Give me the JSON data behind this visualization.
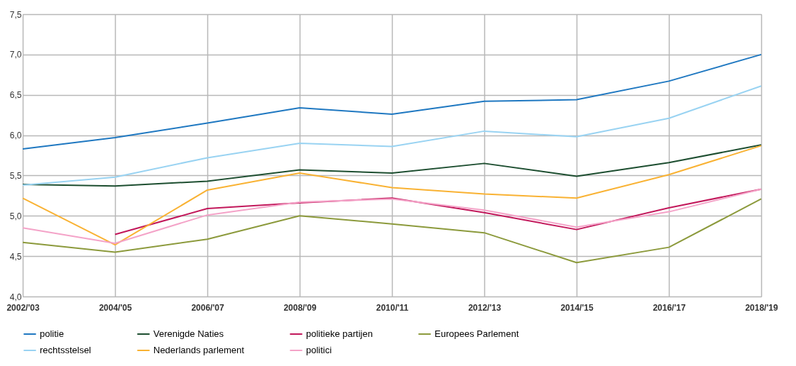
{
  "chart_data": {
    "type": "line",
    "categories": [
      "2002/'03",
      "2004/'05",
      "2006/'07",
      "2008/'09",
      "2010/'11",
      "2012/'13",
      "2014/'15",
      "2016/'17",
      "2018/'19"
    ],
    "series": [
      {
        "name": "politie",
        "color": "#1f78c1",
        "values": [
          5.83,
          5.97,
          6.15,
          6.34,
          6.26,
          6.42,
          6.44,
          6.67,
          7.0
        ]
      },
      {
        "name": "Verenigde Naties",
        "color": "#1d4e30",
        "values": [
          5.39,
          5.37,
          5.43,
          5.57,
          5.53,
          5.65,
          5.49,
          5.66,
          5.88
        ]
      },
      {
        "name": "politieke partijen",
        "color": "#c2185b",
        "values": [
          null,
          4.77,
          5.09,
          5.16,
          5.22,
          5.04,
          4.83,
          5.1,
          5.33
        ]
      },
      {
        "name": "Europees Parlement",
        "color": "#8c9a3c",
        "values": [
          4.67,
          4.55,
          4.71,
          5.0,
          4.9,
          4.79,
          4.42,
          4.61,
          5.21
        ]
      },
      {
        "name": "rechtsstelsel",
        "color": "#99d3f2",
        "values": [
          5.38,
          5.48,
          5.72,
          5.9,
          5.86,
          6.05,
          5.98,
          6.21,
          6.61
        ]
      },
      {
        "name": "Nederlands parlement",
        "color": "#f9b233",
        "values": [
          5.22,
          4.64,
          5.32,
          5.53,
          5.35,
          5.27,
          5.22,
          5.51,
          5.87
        ]
      },
      {
        "name": "politici",
        "color": "#f4a3c8",
        "values": [
          4.85,
          4.66,
          5.01,
          5.17,
          5.21,
          5.07,
          4.86,
          5.05,
          5.33
        ]
      }
    ],
    "ylim": [
      4.0,
      7.5
    ],
    "yticks": [
      {
        "value": 4.0,
        "label": "4,0"
      },
      {
        "value": 4.5,
        "label": "4,5"
      },
      {
        "value": 5.0,
        "label": "5,0"
      },
      {
        "value": 5.5,
        "label": "5,5"
      },
      {
        "value": 6.0,
        "label": "6,0"
      },
      {
        "value": 6.5,
        "label": "6,5"
      },
      {
        "value": 7.0,
        "label": "7,0"
      },
      {
        "value": 7.5,
        "label": "7,5"
      }
    ],
    "grid": true,
    "legend": "bottom"
  }
}
